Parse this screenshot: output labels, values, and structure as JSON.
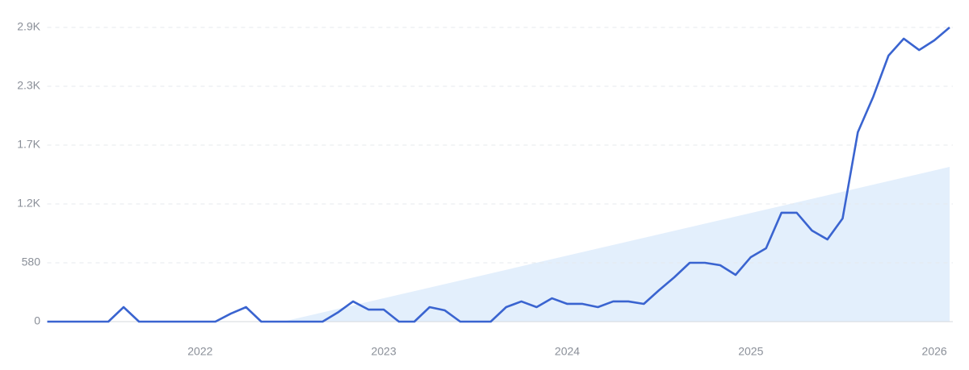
{
  "chart_data": {
    "type": "line",
    "x": [
      2021.167,
      2021.25,
      2021.333,
      2021.417,
      2021.5,
      2021.583,
      2021.667,
      2021.75,
      2021.833,
      2021.917,
      2022,
      2022.083,
      2022.167,
      2022.25,
      2022.333,
      2022.417,
      2022.5,
      2022.583,
      2022.667,
      2022.75,
      2022.833,
      2022.917,
      2023,
      2023.083,
      2023.167,
      2023.25,
      2023.333,
      2023.417,
      2023.5,
      2023.583,
      2023.667,
      2023.75,
      2023.833,
      2023.917,
      2024,
      2024.083,
      2024.167,
      2024.25,
      2024.333,
      2024.417,
      2024.5,
      2024.583,
      2024.667,
      2024.75,
      2024.833,
      2024.917,
      2025,
      2025.083,
      2025.167,
      2025.25,
      2025.333,
      2025.417,
      2025.5,
      2025.583,
      2025.667,
      2025.75,
      2025.833,
      2025.917,
      2026,
      2026.083
    ],
    "series": [
      {
        "color": "#3a64d0",
        "values": [
          0,
          0,
          0,
          0,
          0,
          143,
          0,
          0,
          0,
          0,
          0,
          0,
          79,
          143,
          0,
          0,
          0,
          0,
          0,
          90,
          199,
          119,
          119,
          0,
          0,
          143,
          111,
          0,
          0,
          0,
          143,
          199,
          143,
          230,
          175,
          175,
          143,
          199,
          199,
          175,
          310,
          437,
          580,
          580,
          556,
          461,
          636,
          723,
          1073,
          1073,
          898,
          810,
          1017,
          1867,
          2217,
          2622,
          2789,
          2677,
          2773,
          2900
        ]
      }
    ],
    "trend": {
      "color": "#e3effc",
      "x": [
        2022.45,
        2026.083
      ],
      "values": [
        0,
        1525
      ]
    },
    "xlim": [
      2021.167,
      2026.083
    ],
    "xticks": [
      2022,
      2023,
      2024,
      2025,
      2026
    ],
    "ylim": [
      0,
      2900
    ],
    "yticks": [
      0,
      580,
      {
        "value": 1160,
        "label": "1.2K"
      },
      {
        "value": 1740,
        "label": "1.7K"
      },
      {
        "value": 2320,
        "label": "2.3K"
      },
      {
        "value": 2900,
        "label": "2.9K"
      }
    ],
    "grid": true
  }
}
